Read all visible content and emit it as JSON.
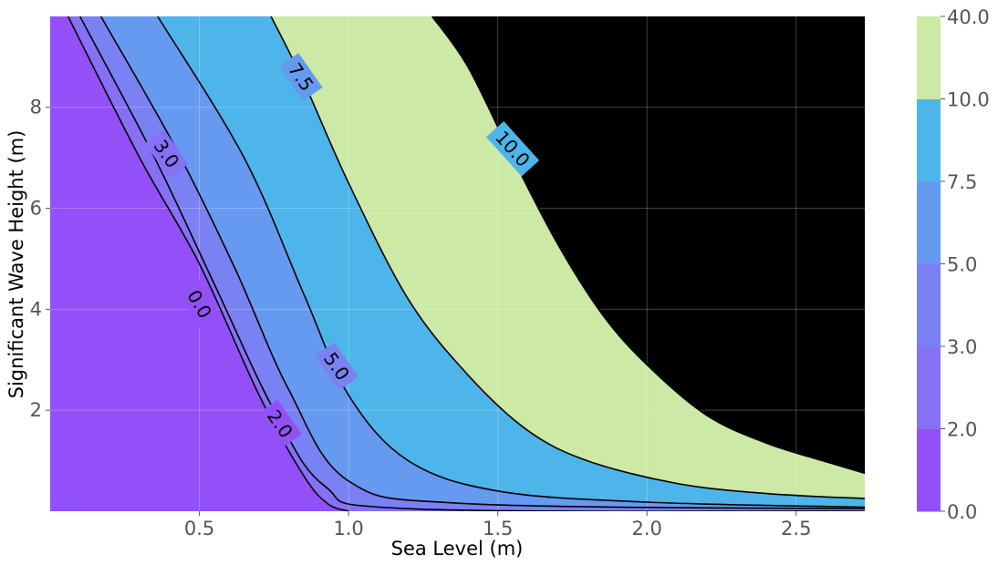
{
  "chart_data": {
    "type": "contourf",
    "xlabel": "Sea Level (m)",
    "ylabel": "Significant Wave Height (m)",
    "xlim": [
      0.0,
      2.73
    ],
    "ylim": [
      0.0,
      9.8
    ],
    "xticks": [
      0.5,
      1.0,
      1.5,
      2.0,
      2.5
    ],
    "xtick_labels": [
      "0.5",
      "1.0",
      "1.5",
      "2.0",
      "2.5"
    ],
    "yticks": [
      2,
      4,
      6,
      8
    ],
    "ytick_labels": [
      "2",
      "4",
      "6",
      "8"
    ],
    "grid": true,
    "levels": [
      0.0,
      2.0,
      3.0,
      5.0,
      7.5,
      10.0,
      40.0
    ],
    "level_labels": [
      "0.0",
      "2.0",
      "3.0",
      "5.0",
      "7.5",
      "10.0",
      "40.0"
    ],
    "band_colors": [
      "#9350f8",
      "#8670f6",
      "#7a81f3",
      "#659af0",
      "#4db5e9",
      "#cce9a6"
    ],
    "contour_lines": [
      {
        "level": 0.0,
        "label": "0.0",
        "points": [
          [
            0.06,
            9.8
          ],
          [
            0.3,
            7.0
          ],
          [
            0.5,
            4.9
          ],
          [
            0.7,
            2.3
          ],
          [
            0.85,
            0.7
          ],
          [
            0.93,
            0.15
          ],
          [
            1.0,
            0.0
          ]
        ]
      },
      {
        "level": 2.0,
        "label": "2.0",
        "points": [
          [
            0.1,
            9.8
          ],
          [
            0.35,
            7.0
          ],
          [
            0.55,
            4.5
          ],
          [
            0.75,
            2.0
          ],
          [
            0.92,
            0.5
          ],
          [
            1.2,
            0.05
          ],
          [
            2.73,
            0.0
          ]
        ]
      },
      {
        "level": 3.0,
        "label": "3.0",
        "points": [
          [
            0.17,
            9.8
          ],
          [
            0.42,
            7.2
          ],
          [
            0.62,
            4.8
          ],
          [
            0.8,
            2.4
          ],
          [
            1.0,
            0.6
          ],
          [
            1.4,
            0.15
          ],
          [
            2.73,
            0.05
          ]
        ]
      },
      {
        "level": 5.0,
        "label": "5.0",
        "points": [
          [
            0.36,
            9.8
          ],
          [
            0.65,
            7.0
          ],
          [
            0.85,
            4.3
          ],
          [
            1.0,
            2.3
          ],
          [
            1.2,
            1.0
          ],
          [
            1.5,
            0.4
          ],
          [
            2.0,
            0.18
          ],
          [
            2.73,
            0.08
          ]
        ]
      },
      {
        "level": 7.5,
        "label": "7.5",
        "points": [
          [
            0.74,
            9.8
          ],
          [
            0.85,
            8.5
          ],
          [
            1.0,
            6.5
          ],
          [
            1.2,
            4.2
          ],
          [
            1.4,
            2.7
          ],
          [
            1.6,
            1.6
          ],
          [
            1.8,
            1.0
          ],
          [
            2.1,
            0.55
          ],
          [
            2.4,
            0.35
          ],
          [
            2.73,
            0.25
          ]
        ]
      },
      {
        "level": 10.0,
        "label": "10.0",
        "points": [
          [
            1.28,
            9.8
          ],
          [
            1.4,
            8.8
          ],
          [
            1.55,
            7.0
          ],
          [
            1.7,
            5.3
          ],
          [
            1.85,
            3.9
          ],
          [
            2.0,
            2.9
          ],
          [
            2.2,
            1.9
          ],
          [
            2.4,
            1.35
          ],
          [
            2.6,
            0.98
          ],
          [
            2.73,
            0.75
          ]
        ]
      }
    ],
    "annotations": [
      {
        "text": "0.0",
        "x": 0.5,
        "y": 4.1,
        "angle": 60
      },
      {
        "text": "2.0",
        "x": 0.77,
        "y": 1.73,
        "angle": 55
      },
      {
        "text": "3.0",
        "x": 0.39,
        "y": 7.08,
        "angle": 55
      },
      {
        "text": "5.0",
        "x": 0.96,
        "y": 2.87,
        "angle": 55
      },
      {
        "text": "7.5",
        "x": 0.84,
        "y": 8.6,
        "angle": 55
      },
      {
        "text": "10.0",
        "x": 1.55,
        "y": 7.18,
        "angle": 48
      }
    ]
  }
}
